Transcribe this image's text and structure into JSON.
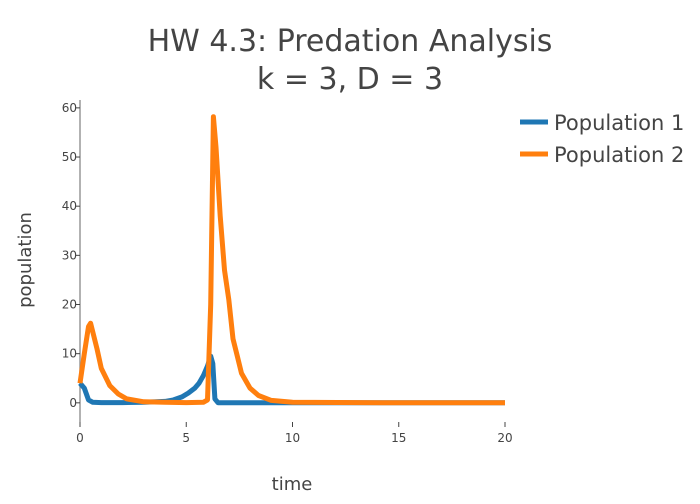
{
  "chart_data": {
    "type": "line",
    "title": "HW 4.3: Predation Analysis",
    "subtitle": "k = 3, D = 3",
    "xlabel": "time",
    "ylabel": "population",
    "xlim": [
      0,
      20
    ],
    "ylim": [
      -3.9,
      61.6
    ],
    "xticks": [
      0,
      5,
      10,
      15,
      20
    ],
    "yticks": [
      0,
      10,
      20,
      30,
      40,
      50,
      60
    ],
    "grid": false,
    "legend": "top-right",
    "series": [
      {
        "name": "Population 1",
        "color": "#1f77b4",
        "x": [
          0,
          0.2,
          0.4,
          0.6,
          1,
          2,
          3,
          4,
          4.4,
          4.8,
          5.1,
          5.4,
          5.6,
          5.8,
          6.0,
          6.15,
          6.25,
          6.35,
          6.5,
          7,
          10,
          15,
          20
        ],
        "y": [
          4,
          3,
          0.6,
          0.1,
          0.05,
          0.05,
          0.1,
          0.3,
          0.6,
          1.2,
          2,
          3,
          4,
          5.5,
          7.5,
          9.5,
          8,
          0.8,
          0,
          0,
          0,
          0,
          0
        ]
      },
      {
        "name": "Population 2",
        "color": "#ff7f0e",
        "x": [
          0,
          0.2,
          0.4,
          0.5,
          0.8,
          1.0,
          1.4,
          1.8,
          2.2,
          3,
          4,
          5,
          5.8,
          6.0,
          6.15,
          6.28,
          6.4,
          6.6,
          6.8,
          7.0,
          7.2,
          7.4,
          7.6,
          8.0,
          8.4,
          9,
          10,
          15,
          20
        ],
        "y": [
          4,
          10,
          15.5,
          16.2,
          11,
          7,
          3.5,
          1.8,
          0.8,
          0.2,
          0.1,
          0.05,
          0.1,
          0.6,
          20,
          58.2,
          52,
          38,
          27,
          21,
          13,
          9.5,
          6,
          3,
          1.5,
          0.5,
          0.1,
          0,
          0
        ]
      }
    ]
  }
}
